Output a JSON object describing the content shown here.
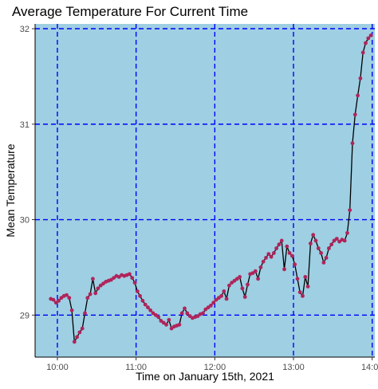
{
  "chart_data": {
    "type": "line",
    "title": "Average Temperature For Current Time",
    "xlabel": "Time on January 15th, 2021",
    "ylabel": "Mean Temperature",
    "x_ticks": [
      "10:00",
      "11:00",
      "12:00",
      "13:00",
      "14:00"
    ],
    "y_ticks": [
      29,
      30,
      31,
      32
    ],
    "xlim": [
      "09:43",
      "14:02"
    ],
    "ylim": [
      28.56,
      32.05
    ],
    "grid": true,
    "grid_style": "dashed",
    "colors": {
      "panel": "#9ecfe2",
      "grid": "#0000ff",
      "line": "#000000",
      "points": "#b0245b"
    },
    "series": [
      {
        "x": [
          "09:55",
          "09:57",
          "09:59",
          "10:01",
          "10:03",
          "10:05",
          "10:07",
          "10:09",
          "10:11",
          "10:13",
          "10:15",
          "10:17",
          "10:19",
          "10:21",
          "10:23",
          "10:25",
          "10:27",
          "10:29",
          "10:31",
          "10:33",
          "10:35",
          "10:37",
          "10:39",
          "10:41",
          "10:43",
          "10:45",
          "10:47",
          "10:49",
          "10:51",
          "10:53",
          "10:55",
          "10:57",
          "10:59",
          "11:01",
          "11:03",
          "11:05",
          "11:07",
          "11:09",
          "11:11",
          "11:13",
          "11:15",
          "11:17",
          "11:19",
          "11:21",
          "11:23",
          "11:25",
          "11:27",
          "11:29",
          "11:31",
          "11:33",
          "11:35",
          "11:37",
          "11:39",
          "11:41",
          "11:43",
          "11:45",
          "11:47",
          "11:49",
          "11:51",
          "11:53",
          "11:55",
          "11:57",
          "11:59",
          "12:01",
          "12:03",
          "12:05",
          "12:07",
          "12:09",
          "12:11",
          "12:13",
          "12:15",
          "12:17",
          "12:19",
          "12:21",
          "12:23",
          "12:25",
          "12:27",
          "12:29",
          "12:31",
          "12:33",
          "12:35",
          "12:37",
          "12:39",
          "12:41",
          "12:43",
          "12:45",
          "12:47",
          "12:49",
          "12:51",
          "12:53",
          "12:55",
          "12:57",
          "12:59",
          "13:01",
          "13:03",
          "13:05",
          "13:07",
          "13:09",
          "13:11",
          "13:13",
          "13:15",
          "13:17",
          "13:19",
          "13:21",
          "13:23",
          "13:25",
          "13:27",
          "13:29",
          "13:31",
          "13:33",
          "13:35",
          "13:37",
          "13:39",
          "13:41",
          "13:43",
          "13:45",
          "13:47",
          "13:49",
          "13:51",
          "13:53",
          "13:55",
          "13:57",
          "13:59"
        ],
        "y": [
          29.17,
          29.16,
          29.13,
          29.15,
          29.18,
          29.2,
          29.21,
          29.18,
          29.05,
          28.72,
          28.77,
          28.82,
          28.86,
          29.02,
          29.18,
          29.22,
          29.38,
          29.23,
          29.28,
          29.31,
          29.33,
          29.35,
          29.36,
          29.37,
          29.39,
          29.41,
          29.4,
          29.42,
          29.41,
          29.42,
          29.43,
          29.39,
          29.34,
          29.25,
          29.2,
          29.15,
          29.11,
          29.08,
          29.05,
          29.02,
          29,
          28.98,
          28.94,
          28.92,
          28.9,
          28.95,
          28.86,
          28.88,
          28.89,
          28.9,
          29.02,
          29.07,
          29.02,
          28.99,
          28.97,
          28.98,
          28.99,
          29.01,
          29.02,
          29.06,
          29.08,
          29.1,
          29.13,
          29.16,
          29.18,
          29.2,
          29.25,
          29.17,
          29.31,
          29.34,
          29.36,
          29.38,
          29.4,
          29.28,
          29.19,
          29.32,
          29.43,
          29.44,
          29.46,
          29.38,
          29.5,
          29.56,
          29.6,
          29.64,
          29.61,
          29.65,
          29.7,
          29.74,
          29.78,
          29.48,
          29.72,
          29.65,
          29.62,
          29.53,
          29.38,
          29.24,
          29.2,
          29.4,
          29.3,
          29.75,
          29.84,
          29.78,
          29.7,
          29.65,
          29.55,
          29.6,
          29.7,
          29.74,
          29.78,
          29.8,
          29.77,
          29.79,
          29.78,
          29.86,
          30.1,
          30.8,
          31.1,
          31.3,
          31.48,
          31.75,
          31.85,
          31.9,
          31.93
        ]
      }
    ]
  }
}
